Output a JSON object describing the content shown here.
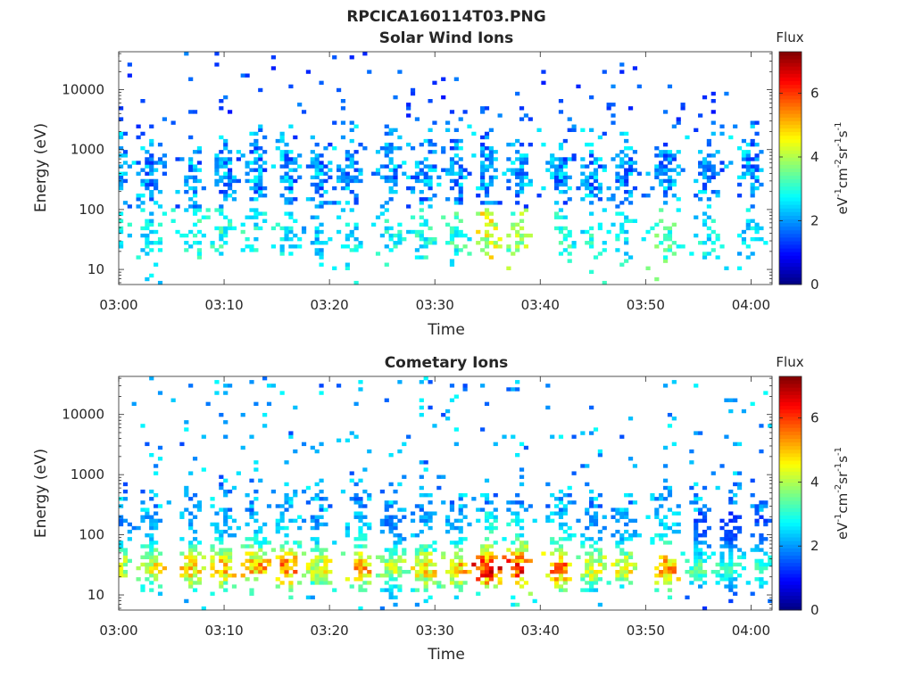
{
  "figure_title": "RPCICA160114T03.PNG",
  "colorbar": {
    "title": "Flux",
    "label_parts": [
      "eV",
      "-1",
      "cm",
      "-2",
      "sr",
      "-1",
      "s",
      "-1"
    ],
    "ticks": [
      "0",
      "2",
      "4",
      "6"
    ],
    "range": [
      0,
      7.3
    ],
    "colormap": "jet"
  },
  "chart_data": [
    {
      "type": "heatmap",
      "title": "Solar Wind Ions",
      "xlabel": "Time",
      "ylabel": "Energy (eV)",
      "x_ticks": [
        "03:00",
        "03:10",
        "03:20",
        "03:30",
        "03:40",
        "03:50",
        "04:00"
      ],
      "y_ticks": [
        "10",
        "100",
        "1000",
        "10000"
      ],
      "x_range": [
        "03:00",
        "04:02"
      ],
      "y_range": [
        5.6,
        43000
      ],
      "y_scale": "log",
      "z_label": "Flux",
      "z_range": [
        0,
        7.3
      ],
      "bursts": [
        {
          "time": "03:00",
          "amp": 3.2
        },
        {
          "time": "03:03",
          "amp": 3.0
        },
        {
          "time": "03:07",
          "amp": 3.3
        },
        {
          "time": "03:10",
          "amp": 3.4
        },
        {
          "time": "03:13",
          "amp": 3.2
        },
        {
          "time": "03:16",
          "amp": 3.0
        },
        {
          "time": "03:19",
          "amp": 2.7
        },
        {
          "time": "03:22",
          "amp": 3.0
        },
        {
          "time": "03:26",
          "amp": 3.1
        },
        {
          "time": "03:29",
          "amp": 3.2
        },
        {
          "time": "03:32",
          "amp": 3.4
        },
        {
          "time": "03:35",
          "amp": 4.8
        },
        {
          "time": "03:38",
          "amp": 4.2
        },
        {
          "time": "03:42",
          "amp": 3.4
        },
        {
          "time": "03:45",
          "amp": 3.2
        },
        {
          "time": "03:48",
          "amp": 3.1
        },
        {
          "time": "03:52",
          "amp": 3.6
        },
        {
          "time": "03:56",
          "amp": 3.0
        },
        {
          "time": "04:00",
          "amp": 2.8
        }
      ]
    },
    {
      "type": "heatmap",
      "title": "Cometary Ions",
      "xlabel": "Time",
      "ylabel": "Energy (eV)",
      "x_ticks": [
        "03:00",
        "03:10",
        "03:20",
        "03:30",
        "03:40",
        "03:50",
        "04:00"
      ],
      "y_ticks": [
        "10",
        "100",
        "1000",
        "10000"
      ],
      "x_range": [
        "03:00",
        "04:02"
      ],
      "y_range": [
        5.6,
        43000
      ],
      "y_scale": "log",
      "z_label": "Flux",
      "z_range": [
        0,
        7.3
      ],
      "bursts": [
        {
          "time": "03:00",
          "amp": 4.6
        },
        {
          "time": "03:03",
          "amp": 5.0
        },
        {
          "time": "03:07",
          "amp": 5.3
        },
        {
          "time": "03:10",
          "amp": 5.4
        },
        {
          "time": "03:13",
          "amp": 5.6
        },
        {
          "time": "03:16",
          "amp": 5.9
        },
        {
          "time": "03:19",
          "amp": 4.8
        },
        {
          "time": "03:23",
          "amp": 5.7
        },
        {
          "time": "03:26",
          "amp": 4.4
        },
        {
          "time": "03:29",
          "amp": 5.2
        },
        {
          "time": "03:32",
          "amp": 5.4
        },
        {
          "time": "03:35",
          "amp": 6.8
        },
        {
          "time": "03:38",
          "amp": 6.6
        },
        {
          "time": "03:42",
          "amp": 6.0
        },
        {
          "time": "03:45",
          "amp": 4.8
        },
        {
          "time": "03:48",
          "amp": 4.9
        },
        {
          "time": "03:52",
          "amp": 5.8
        },
        {
          "time": "03:55",
          "amp": 3.6
        },
        {
          "time": "03:58",
          "amp": 3.3
        },
        {
          "time": "04:01",
          "amp": 3.5
        }
      ]
    }
  ]
}
